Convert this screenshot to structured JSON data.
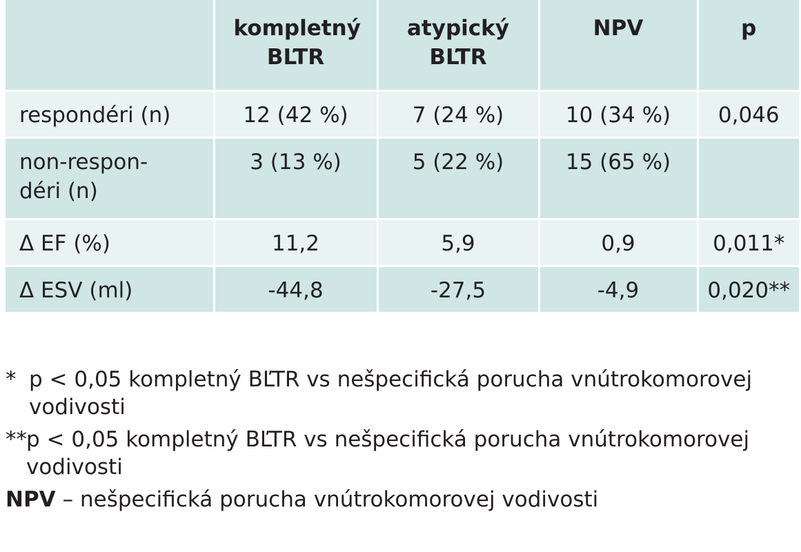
{
  "table": {
    "headers": [
      "",
      "kompletný BĽTR",
      "atypický BĽTR",
      "NPV",
      "p"
    ],
    "rows": [
      {
        "label": "respondéri (n)",
        "cells": [
          "12 (42 %)",
          "7 (24 %)",
          "10 (34 %)",
          "0,046"
        ]
      },
      {
        "label": "non-respon-déri (n)",
        "cells": [
          "3 (13 %)",
          "5 (22 %)",
          "15 (65 %)",
          ""
        ]
      },
      {
        "label": "Δ EF (%)",
        "cells": [
          "11,2",
          "5,9",
          "0,9",
          "0,011*"
        ]
      },
      {
        "label": "Δ ESV (ml)",
        "cells": [
          "-44,8",
          "-27,5",
          "-4,9",
          "0,020**"
        ]
      }
    ]
  },
  "footnotes": [
    {
      "mark": "*",
      "text": "p < 0,05 kompletný BĽTR vs nešpecifická porucha vnútrokomorovej vodivosti"
    },
    {
      "mark": "**",
      "text": "p < 0,05 kompletný BĽTR vs nešpecifická porucha vnútrokomorovej vodivosti"
    },
    {
      "mark": "NPV",
      "text": "– nešpecifická porucha vnútrokomorovej vodivosti"
    }
  ],
  "colors": {
    "header_bg": "#cfe6e5",
    "row_light": "#e8f3f2",
    "row_dark": "#cfe6e5",
    "text": "#231f20"
  }
}
